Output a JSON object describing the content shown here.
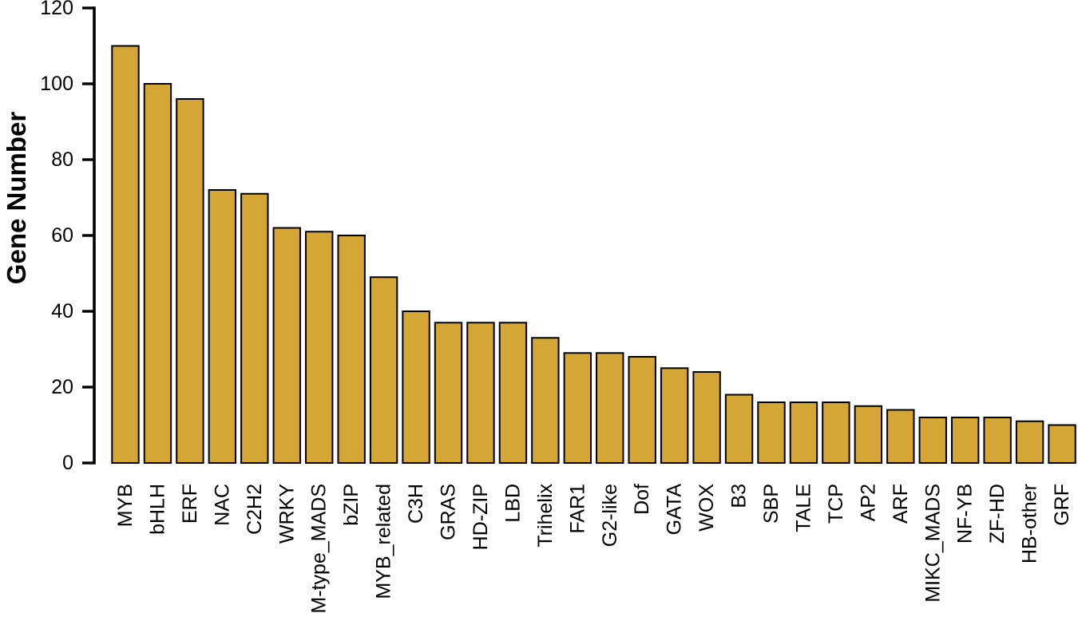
{
  "figure": {
    "background_color": "#ffffff",
    "text_color": "#000000"
  },
  "chart_data": {
    "type": "bar",
    "title": "",
    "xlabel": "",
    "ylabel": "Gene Number",
    "categories": [
      "MYB",
      "bHLH",
      "ERF",
      "NAC",
      "C2H2",
      "WRKY",
      "M-type_MADS",
      "bZIP",
      "MYB_related",
      "C3H",
      "GRAS",
      "HD-ZIP",
      "LBD",
      "Trihelix",
      "FAR1",
      "G2-like",
      "Dof",
      "GATA",
      "WOX",
      "B3",
      "SBP",
      "TALE",
      "TCP",
      "AP2",
      "ARF",
      "MIKC_MADS",
      "NF-YB",
      "ZF-HD",
      "HB-other",
      "GRF"
    ],
    "values": [
      110,
      100,
      96,
      72,
      71,
      62,
      61,
      60,
      49,
      40,
      37,
      37,
      37,
      33,
      29,
      29,
      28,
      25,
      24,
      18,
      16,
      16,
      16,
      15,
      14,
      12,
      12,
      12,
      11,
      10
    ],
    "ylim": [
      0,
      120
    ],
    "yticks": [
      0,
      20,
      40,
      60,
      80,
      100,
      120
    ],
    "grid": false,
    "legend": false,
    "x_tick_label_rotation_degrees": 90,
    "bar_fill_color": "#D4A636",
    "bar_border_color": "#000000",
    "axis_color": "#000000"
  }
}
